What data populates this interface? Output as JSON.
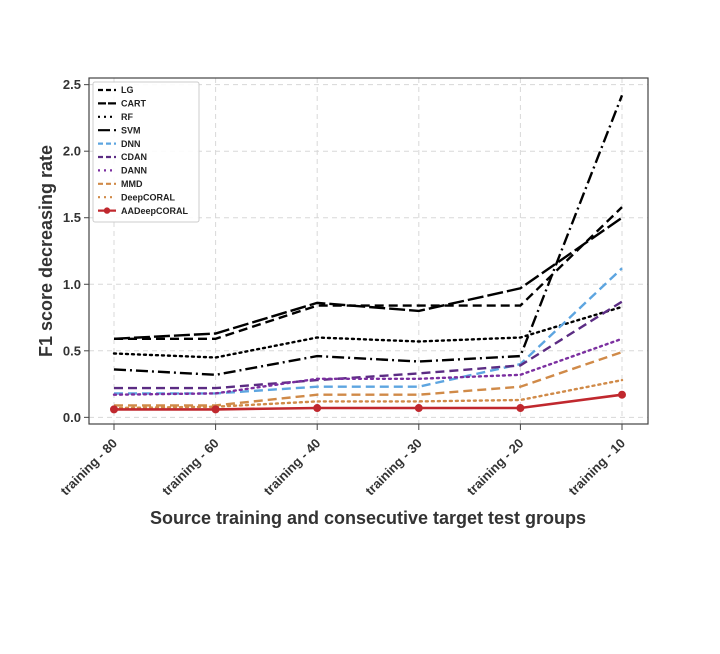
{
  "chart_data": {
    "type": "line",
    "xlabel": "Source training and consecutive target test groups",
    "ylabel": "F1 score decreasing rate",
    "categories": [
      "training - 80",
      "training - 60",
      "training - 40",
      "training - 30",
      "training - 20",
      "training - 10"
    ],
    "ylim": [
      -0.05,
      2.55
    ],
    "yticks": [
      0.0,
      0.5,
      1.0,
      1.5,
      2.0,
      2.5
    ],
    "ytick_labels": [
      "0.0",
      "0.5",
      "1.0",
      "1.5",
      "2.0",
      "2.5"
    ],
    "grid": true,
    "legend_position": "top-left",
    "series": [
      {
        "name": "LG",
        "values": [
          0.59,
          0.59,
          0.84,
          0.84,
          0.84,
          1.58
        ],
        "color": "#000000",
        "dash": "dashed"
      },
      {
        "name": "CART",
        "values": [
          0.59,
          0.63,
          0.86,
          0.8,
          0.97,
          1.5
        ],
        "color": "#000000",
        "dash": "longdash"
      },
      {
        "name": "RF",
        "values": [
          0.48,
          0.45,
          0.6,
          0.57,
          0.6,
          0.83
        ],
        "color": "#000000",
        "dash": "dotted"
      },
      {
        "name": "SVM",
        "values": [
          0.36,
          0.32,
          0.46,
          0.42,
          0.46,
          2.42
        ],
        "color": "#000000",
        "dash": "dashdot"
      },
      {
        "name": "DNN",
        "values": [
          0.18,
          0.18,
          0.23,
          0.23,
          0.4,
          1.12
        ],
        "color": "#5DA5E0",
        "dash": "dashed"
      },
      {
        "name": "CDAN",
        "values": [
          0.22,
          0.22,
          0.28,
          0.33,
          0.39,
          0.87
        ],
        "color": "#5B2C83",
        "dash": "dashed"
      },
      {
        "name": "DANN",
        "values": [
          0.17,
          0.18,
          0.29,
          0.29,
          0.32,
          0.59
        ],
        "color": "#7B2FA0",
        "dash": "dotted"
      },
      {
        "name": "MMD",
        "values": [
          0.09,
          0.09,
          0.17,
          0.17,
          0.23,
          0.49
        ],
        "color": "#D08A48",
        "dash": "dashed"
      },
      {
        "name": "DeepCORAL",
        "values": [
          0.07,
          0.08,
          0.12,
          0.12,
          0.13,
          0.28
        ],
        "color": "#D08A48",
        "dash": "dotted"
      },
      {
        "name": "AADeepCORAL",
        "values": [
          0.06,
          0.06,
          0.07,
          0.07,
          0.07,
          0.17
        ],
        "color": "#C0282E",
        "dash": "solid",
        "markers": true
      }
    ]
  }
}
